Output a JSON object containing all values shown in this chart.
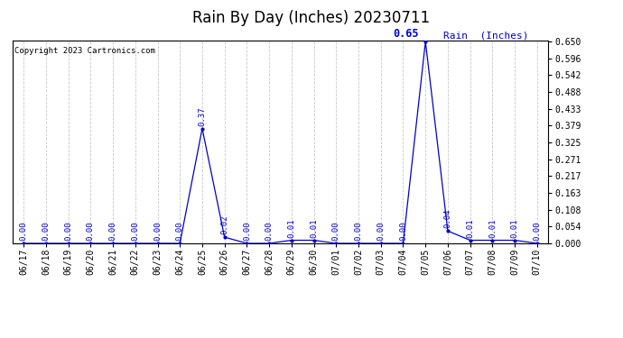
{
  "title": "Rain By Day (Inches) 20230711",
  "copyright": "Copyright 2023 Cartronics.com",
  "legend_label": "Rain  (Inches)",
  "background_color": "#ffffff",
  "line_color": "#0000cc",
  "annotation_color": "#0000cc",
  "grid_color": "#c8c8c8",
  "dates": [
    "06/17",
    "06/18",
    "06/19",
    "06/20",
    "06/21",
    "06/22",
    "06/23",
    "06/24",
    "06/25",
    "06/26",
    "06/27",
    "06/28",
    "06/29",
    "06/30",
    "07/01",
    "07/02",
    "07/03",
    "07/04",
    "07/05",
    "07/06",
    "07/07",
    "07/08",
    "07/09",
    "07/10"
  ],
  "values": [
    0.0,
    0.0,
    0.0,
    0.0,
    0.0,
    0.0,
    0.0,
    0.0,
    0.37,
    0.02,
    0.0,
    0.0,
    0.01,
    0.01,
    0.0,
    0.0,
    0.0,
    0.0,
    0.65,
    0.04,
    0.01,
    0.01,
    0.01,
    0.0
  ],
  "ylim_max": 0.65,
  "yticks": [
    0.0,
    0.054,
    0.108,
    0.163,
    0.217,
    0.271,
    0.325,
    0.379,
    0.433,
    0.488,
    0.542,
    0.596,
    0.65
  ],
  "title_fontsize": 12,
  "annotation_fontsize": 6.5,
  "tick_fontsize": 7,
  "copyright_fontsize": 6.5,
  "legend_fontsize": 8,
  "peak_annotation_fontsize": 8.5,
  "peak_idx": 18
}
